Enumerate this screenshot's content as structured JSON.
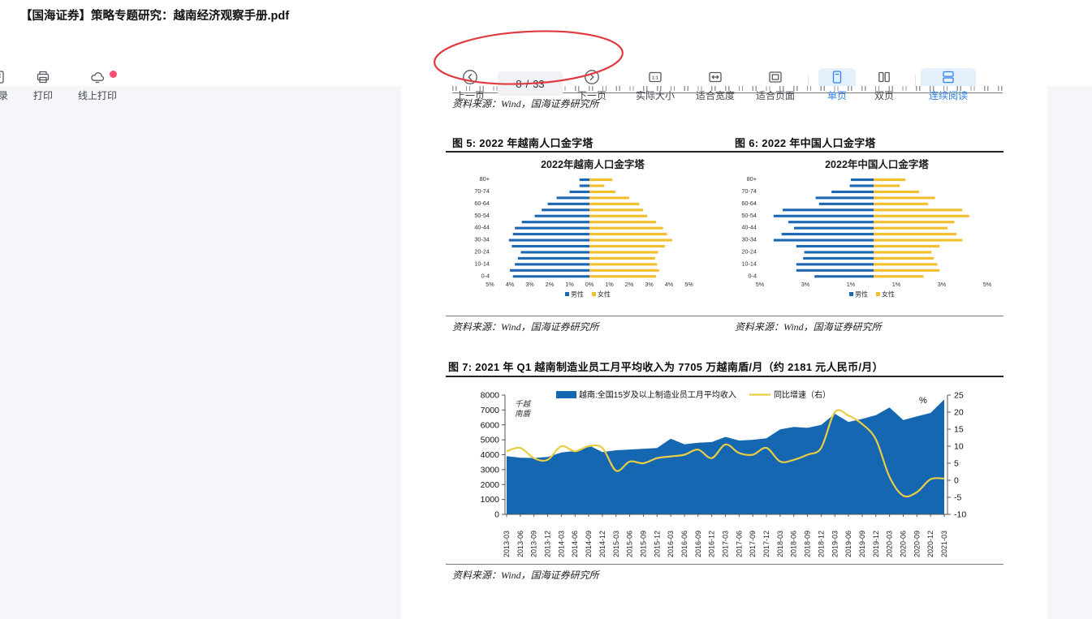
{
  "window": {
    "title": "【国海证券】策略专题研究：越南经济观察手册.pdf"
  },
  "toolbar": {
    "catalog": {
      "label": "目录"
    },
    "print": {
      "label": "打印"
    },
    "online_print": {
      "label": "线上打印",
      "has_badge": true
    },
    "prev_page": {
      "label": "上一页"
    },
    "page_indicator": {
      "current": "8",
      "separator": "/",
      "total": "33"
    },
    "next_page": {
      "label": "下一页"
    },
    "actual_size": {
      "label": "实际大小",
      "icon_text": "1:1"
    },
    "fit_width": {
      "label": "适合宽度"
    },
    "fit_page": {
      "label": "适合页面"
    },
    "single_page": {
      "label": "单页",
      "active": true
    },
    "double_page": {
      "label": "双页",
      "active": false
    },
    "continuous": {
      "label": "连续阅读",
      "active": true
    }
  },
  "document": {
    "source_note_top": "资料来源：Wind，国海证券研究所",
    "figure5_title": "图 5:  2022 年越南人口金字塔",
    "figure6_title": "图 6:  2022 年中国人口金字塔",
    "source_note_fig5": "资料来源：Wind，国海证券研究所",
    "source_note_fig6": "资料来源：Wind，国海证券研究所",
    "figure7_title": "图 7:  2021 年 Q1 越南制造业员工月平均收入为 7705 万越南盾/月（约 2181 元人民币/月）",
    "source_note_fig7": "资料来源：Wind，国海证券研究所"
  },
  "colors": {
    "accent_blue": "#2e82e8",
    "active_bg": "#e4f1fc",
    "bar_blue": "#1b67b2",
    "bar_yellow": "#f2be2b",
    "area_blue": "#1467b0",
    "line_yellow": "#e8cd45",
    "annotation_red": "#e0393e",
    "badge_red": "#fb4d71"
  },
  "chart_data": [
    {
      "type": "bar",
      "subtype": "population_pyramid",
      "title": "2022年越南人口金字塔",
      "categories": [
        "80+",
        "75-79",
        "70-74",
        "65-69",
        "60-64",
        "55-59",
        "50-54",
        "45-49",
        "40-44",
        "35-39",
        "30-34",
        "25-29",
        "20-24",
        "15-19",
        "10-14",
        "5-9",
        "0-4"
      ],
      "series": [
        {
          "name": "男性",
          "values": [
            0.5,
            0.5,
            1.0,
            1.65,
            2.1,
            2.4,
            2.75,
            3.4,
            3.75,
            3.85,
            4.05,
            3.9,
            3.45,
            3.6,
            3.75,
            4.0,
            3.85
          ]
        },
        {
          "name": "女性",
          "values": [
            1.15,
            0.75,
            1.3,
            2.0,
            2.5,
            2.7,
            2.9,
            3.35,
            3.7,
            3.9,
            4.15,
            3.8,
            3.45,
            3.3,
            3.4,
            3.5,
            3.35
          ]
        }
      ],
      "xtick_values": [
        -5,
        -4,
        -3,
        -2,
        -1,
        0,
        1,
        2,
        3,
        4,
        5
      ],
      "xtick_labels": [
        "5%",
        "4%",
        "3%",
        "2%",
        "1%",
        "0%",
        "1%",
        "2%",
        "3%",
        "4%",
        "5%"
      ],
      "xlim": [
        -5,
        5
      ],
      "unit": "percent of population"
    },
    {
      "type": "bar",
      "subtype": "population_pyramid",
      "title": "2022年中国人口金字塔",
      "categories": [
        "80+",
        "75-79",
        "70-74",
        "65-69",
        "60-64",
        "55-59",
        "50-54",
        "45-49",
        "40-44",
        "35-39",
        "30-34",
        "25-29",
        "20-24",
        "15-19",
        "10-14",
        "5-9",
        "0-4"
      ],
      "series": [
        {
          "name": "男性",
          "values": [
            1.0,
            1.05,
            1.85,
            2.55,
            2.4,
            4.0,
            4.4,
            3.75,
            3.5,
            4.05,
            4.4,
            3.4,
            3.05,
            3.1,
            3.4,
            3.4,
            2.6
          ]
        },
        {
          "name": "女性",
          "values": [
            1.4,
            1.15,
            2.0,
            2.7,
            2.4,
            3.9,
            4.2,
            3.55,
            3.25,
            3.65,
            3.9,
            2.9,
            2.55,
            2.65,
            2.8,
            2.9,
            2.2
          ]
        }
      ],
      "xtick_values": [
        -5,
        -3,
        -1,
        1,
        3,
        5
      ],
      "xtick_labels": [
        "5%",
        "3%",
        "1%",
        "1%",
        "3%",
        "5%"
      ],
      "xlim": [
        -5,
        5
      ],
      "unit": "percent of population"
    },
    {
      "type": "area",
      "x": [
        "2013-03",
        "2013-06",
        "2013-09",
        "2013-12",
        "2014-03",
        "2014-06",
        "2014-09",
        "2014-12",
        "2015-03",
        "2015-06",
        "2015-09",
        "2015-12",
        "2016-03",
        "2016-06",
        "2016-09",
        "2016-12",
        "2017-03",
        "2017-06",
        "2017-09",
        "2017-12",
        "2018-03",
        "2018-06",
        "2018-09",
        "2018-12",
        "2019-03",
        "2019-06",
        "2019-09",
        "2019-12",
        "2020-03",
        "2020-06",
        "2020-09",
        "2020-12",
        "2021-03"
      ],
      "series": [
        {
          "name": "越南:全国15岁及以上制造业员工月平均收入",
          "type": "area",
          "axis": "left",
          "values": [
            3900,
            3800,
            3780,
            3850,
            4150,
            4250,
            4640,
            4180,
            4300,
            4350,
            4400,
            4450,
            5070,
            4700,
            4800,
            4850,
            5200,
            4950,
            5000,
            5100,
            5700,
            5860,
            5800,
            6000,
            6750,
            6200,
            6400,
            6650,
            7170,
            6330,
            6570,
            6800,
            7705
          ]
        },
        {
          "name": "同比增速（右）",
          "type": "line",
          "axis": "right",
          "values": [
            8.5,
            9.5,
            6.5,
            6.0,
            10.0,
            8.5,
            10.0,
            9.5,
            2.8,
            5.5,
            5.0,
            6.5,
            7.0,
            7.5,
            9.0,
            6.5,
            10.5,
            8.0,
            7.5,
            9.5,
            5.5,
            6.0,
            7.5,
            9.5,
            20.0,
            19.0,
            16.5,
            12.0,
            1.0,
            -4.5,
            -3.5,
            0.3,
            0.5
          ]
        }
      ],
      "left_axis": {
        "unit": "千越南盾",
        "unit_lines": [
          "千越",
          "南盾"
        ],
        "min": 0,
        "max": 8000,
        "step": 1000
      },
      "right_axis": {
        "unit": "%",
        "min": -10,
        "max": 25,
        "step": 5
      },
      "legend_position": "top",
      "grid": false
    }
  ]
}
